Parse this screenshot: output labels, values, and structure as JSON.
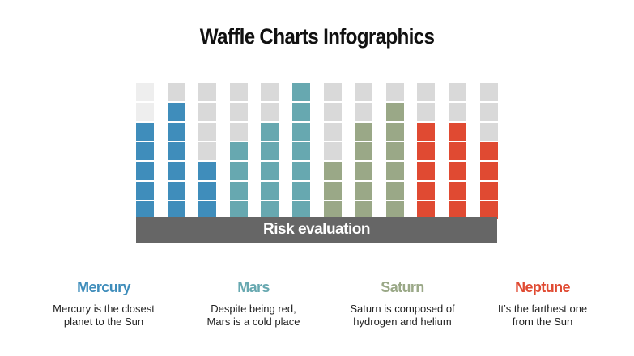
{
  "title": "Waffle Charts Infographics",
  "chart_data": {
    "type": "waffle",
    "title": "Waffle Charts Infographics",
    "xlabel": "Risk evaluation",
    "rows_per_column": 7,
    "empty_color": "#d9d9d9",
    "columns": [
      {
        "series": "Mercury",
        "filled": 5,
        "color": "#3f8dbb"
      },
      {
        "series": "Mercury",
        "filled": 6,
        "color": "#3f8dbb"
      },
      {
        "series": "Mercury",
        "filled": 3,
        "color": "#3f8dbb"
      },
      {
        "series": "Mars",
        "filled": 4,
        "color": "#67a8b0"
      },
      {
        "series": "Mars",
        "filled": 5,
        "color": "#67a8b0"
      },
      {
        "series": "Mars",
        "filled": 7,
        "color": "#67a8b0"
      },
      {
        "series": "Saturn",
        "filled": 3,
        "color": "#9aa887"
      },
      {
        "series": "Saturn",
        "filled": 5,
        "color": "#9aa887"
      },
      {
        "series": "Saturn",
        "filled": 6,
        "color": "#9aa887"
      },
      {
        "series": "Neptune",
        "filled": 5,
        "color": "#e04a32"
      },
      {
        "series": "Neptune",
        "filled": 5,
        "color": "#e04a32"
      },
      {
        "series": "Neptune",
        "filled": 4,
        "color": "#e04a32"
      }
    ]
  },
  "legend": [
    {
      "name": "Mercury",
      "color": "#3f8dbb",
      "line1": "Mercury is the closest",
      "line2": "planet to the Sun"
    },
    {
      "name": "Mars",
      "color": "#67a8b0",
      "line1": "Despite being red,",
      "line2": "Mars is a cold place"
    },
    {
      "name": "Saturn",
      "color": "#9aa887",
      "line1": "Saturn is composed of",
      "line2": "hydrogen and helium"
    },
    {
      "name": "Neptune",
      "color": "#e04a32",
      "line1": "It’s the farthest one",
      "line2": "from the Sun"
    }
  ]
}
